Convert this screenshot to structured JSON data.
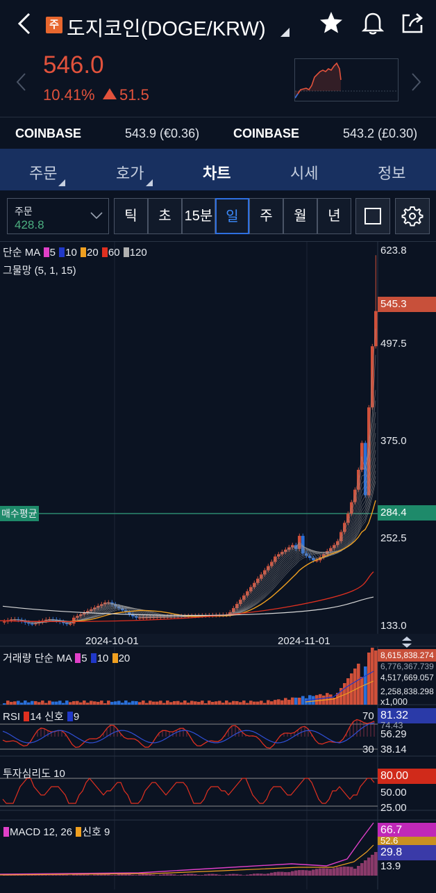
{
  "header": {
    "badge": "주",
    "title": "도지코인(DOGE/KRW)",
    "icons": [
      "back-icon",
      "star-icon",
      "bell-icon",
      "share-icon"
    ]
  },
  "quote": {
    "price": "546.0",
    "change_pct": "10.41%",
    "change_abs": "51.5",
    "color_up": "#e2523c"
  },
  "exchanges": [
    {
      "name": "COINBASE",
      "value": "543.9 (€0.36)"
    },
    {
      "name": "COINBASE",
      "value": "543.2 (£0.30)"
    }
  ],
  "tabs": [
    {
      "label": "주문",
      "active": false,
      "dropdown": true
    },
    {
      "label": "호가",
      "active": false,
      "dropdown": true
    },
    {
      "label": "차트",
      "active": true,
      "dropdown": false
    },
    {
      "label": "시세",
      "active": false,
      "dropdown": false
    },
    {
      "label": "정보",
      "active": false,
      "dropdown": false
    }
  ],
  "toolbar": {
    "order_label": "주문",
    "order_value": "428.8",
    "periods": [
      "틱",
      "초",
      "15분",
      "일",
      "주",
      "월",
      "년"
    ],
    "selected_period": "일"
  },
  "chart": {
    "ma_label": "단순 MA",
    "ma_periods": [
      "5",
      "10",
      "20",
      "60",
      "120"
    ],
    "ma_colors": [
      "#e040c8",
      "#2038c8",
      "#f0a020",
      "#e03020",
      "#b0b0b0"
    ],
    "grid_label": "그물망 (5, 1, 15)",
    "avg_buy_label": "매수평균",
    "axis_labels": [
      "623.8",
      "497.5",
      "375.0",
      "252.5",
      "133.0"
    ],
    "current_tag": "545.3",
    "avg_tag": "284.4",
    "dates": [
      "2024-10-01",
      "2024-11-01"
    ],
    "volume": {
      "label": "거래량 단순 MA",
      "periods": [
        "5",
        "10",
        "20"
      ],
      "axis": [
        "8,615,838.274",
        "6,776,367.739",
        "4,517,669.057",
        "2,258,838.298",
        "x1,000"
      ]
    },
    "rsi": {
      "label": "RSI",
      "period": "14",
      "signal_label": "신호",
      "signal": "9",
      "level_high": "70",
      "level_low": "30",
      "tag": "81.32",
      "axis": [
        "74.43",
        "56.29",
        "38.14"
      ]
    },
    "sentiment": {
      "label": "투자심리도 10",
      "tag": "80.00",
      "axis": [
        "50.00",
        "25.00"
      ]
    },
    "macd": {
      "label": "MACD 12, 26",
      "signal_label": "신호 9",
      "tags": [
        "66.7",
        "52.6",
        "29.8"
      ],
      "axis": [
        "13.9"
      ]
    }
  }
}
